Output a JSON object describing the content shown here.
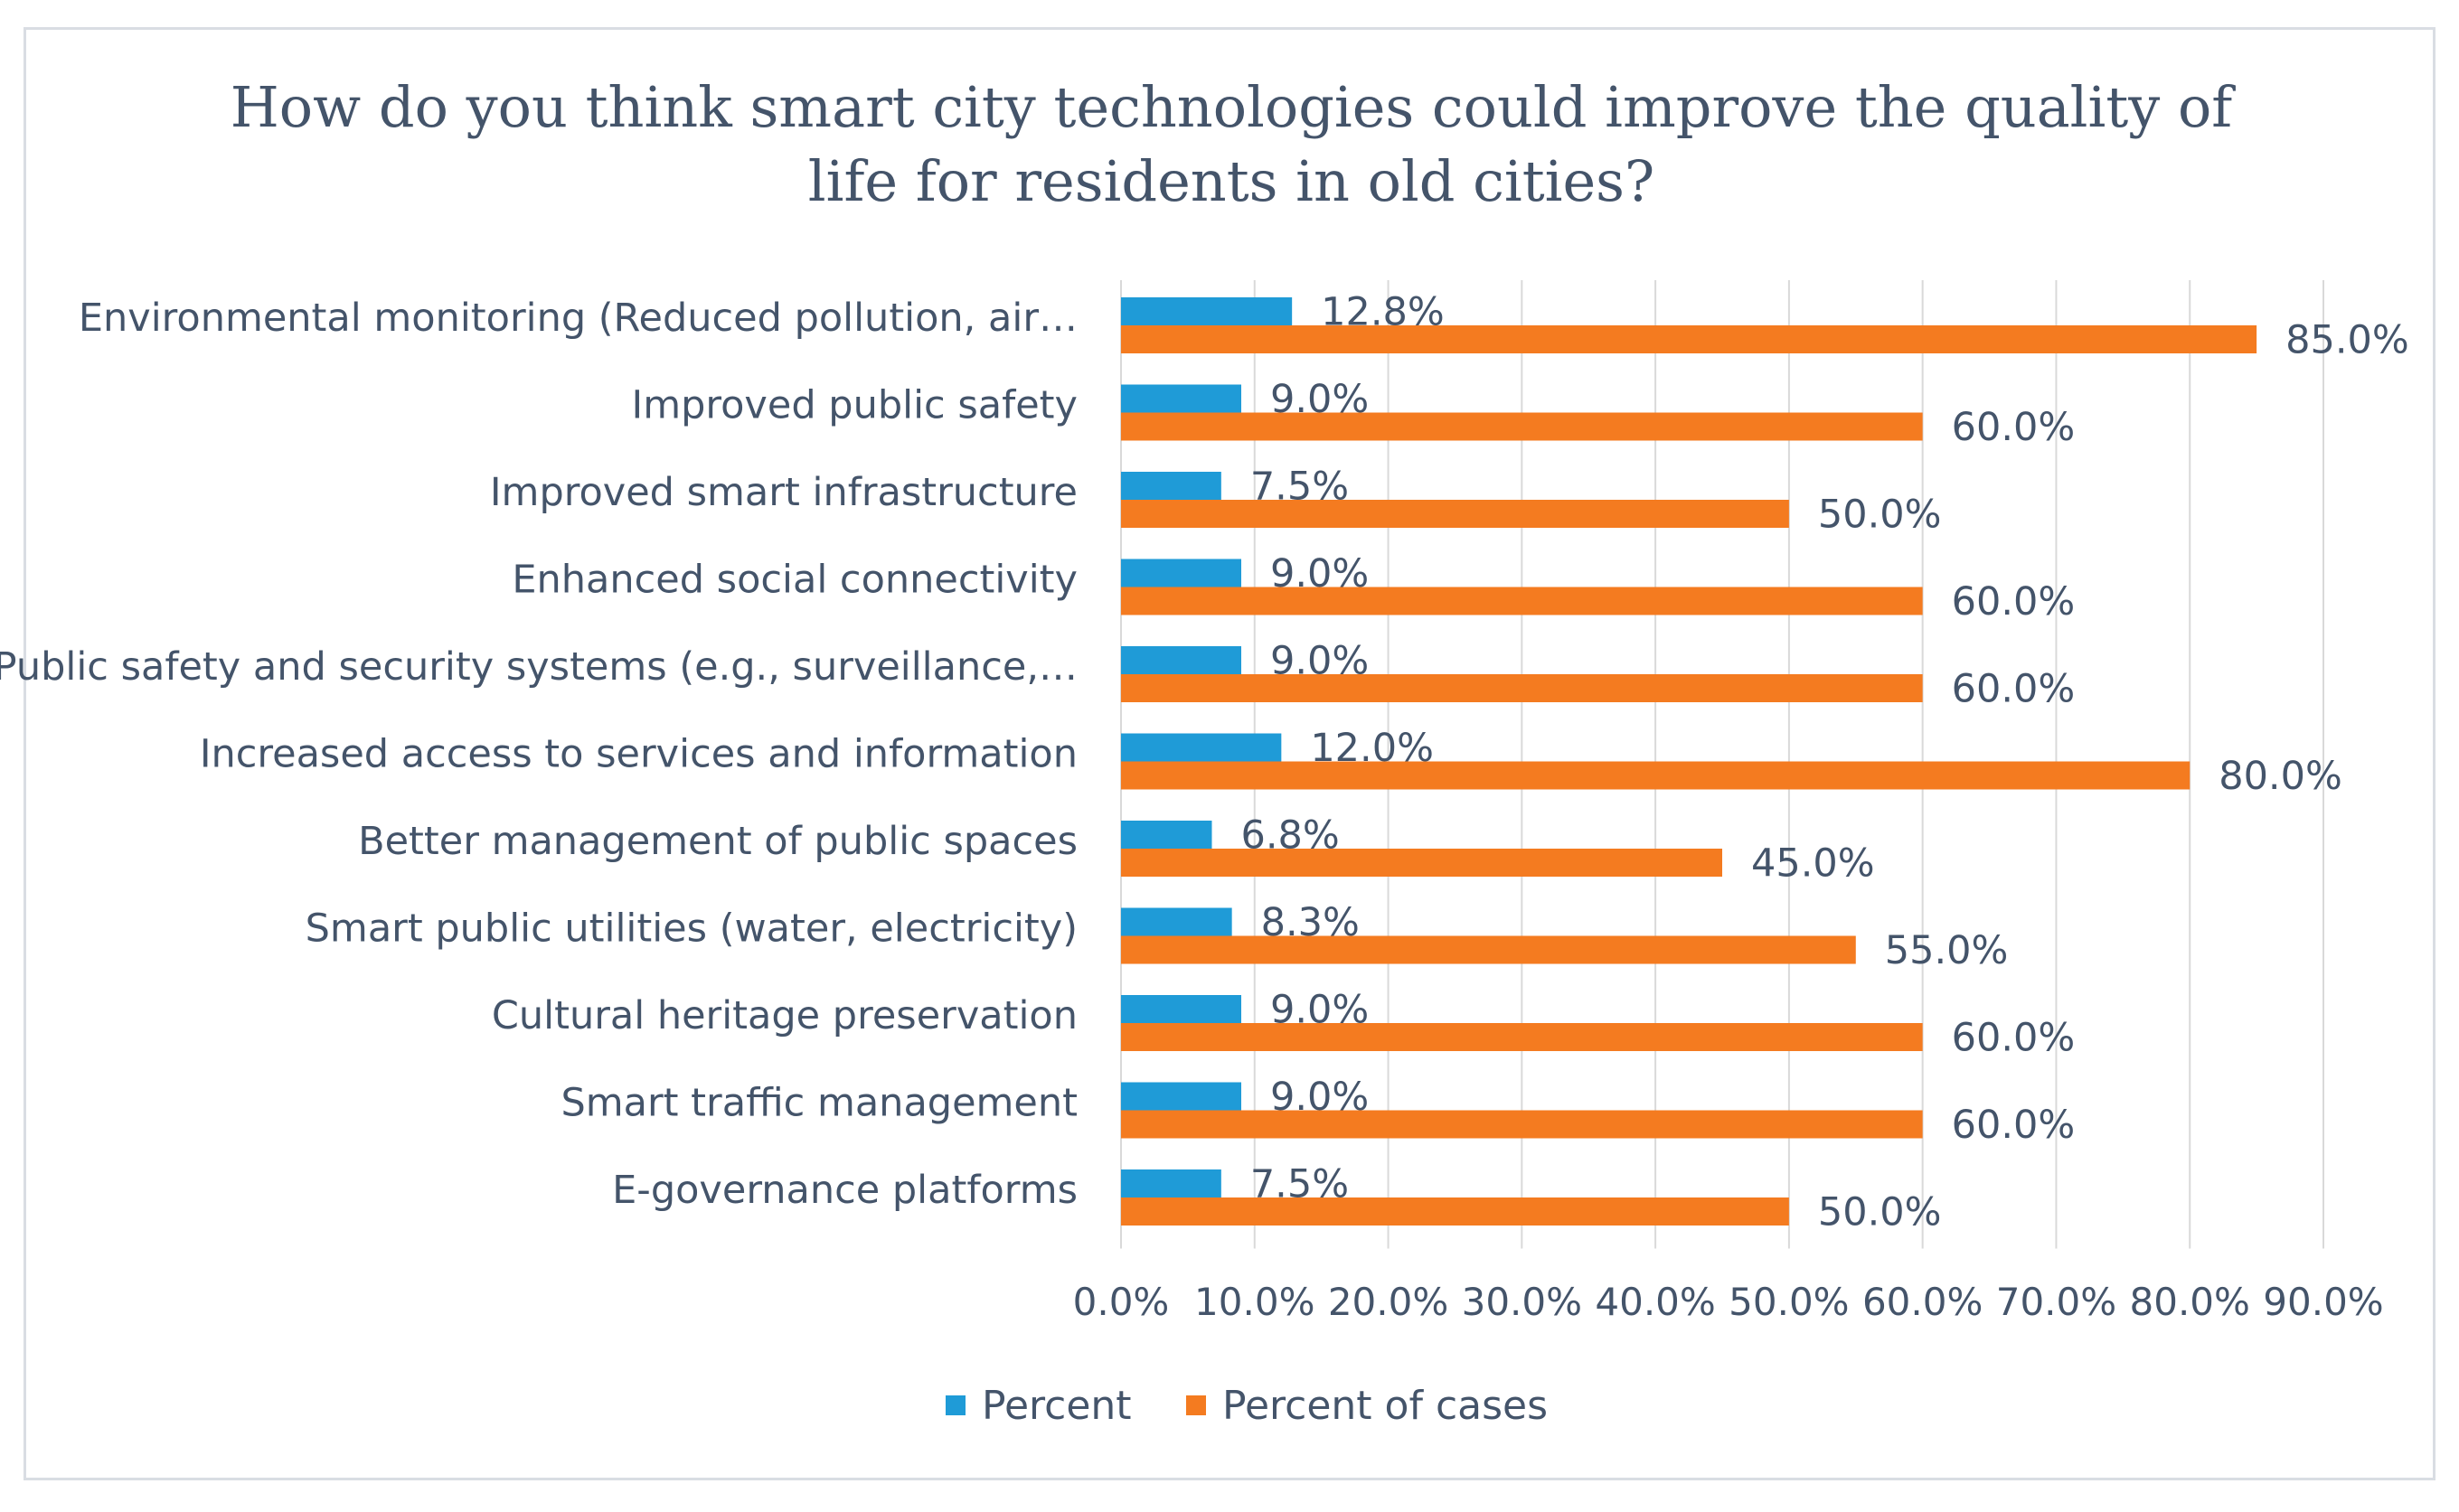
{
  "chart_data": {
    "type": "bar",
    "orientation": "horizontal",
    "title": "How do you think smart city technologies could improve the quality of life for residents in old cities?",
    "title_lines": [
      "How do you think smart city technologies could improve the quality of",
      "life for residents in old cities?"
    ],
    "categories": [
      "Environmental monitoring (Reduced pollution, air…",
      "Improved public safety",
      "Improved smart infrastructure",
      "Enhanced social connectivity",
      "Public safety and security systems (e.g., surveillance,…",
      "Increased access to services and information",
      "Better management of public spaces",
      "Smart public utilities (water, electricity)",
      "Cultural heritage preservation",
      "Smart traffic management",
      "E-governance platforms"
    ],
    "series": [
      {
        "name": "Percent",
        "color": "#1f9bd7",
        "values": [
          12.8,
          9.0,
          7.5,
          9.0,
          9.0,
          12.0,
          6.8,
          8.3,
          9.0,
          9.0,
          7.5
        ],
        "labels": [
          "12.8%",
          "9.0%",
          "7.5%",
          "9.0%",
          "9.0%",
          "12.0%",
          "6.8%",
          "8.3%",
          "9.0%",
          "9.0%",
          "7.5%"
        ]
      },
      {
        "name": "Percent of cases",
        "color": "#f47b20",
        "values": [
          85.0,
          60.0,
          50.0,
          60.0,
          60.0,
          80.0,
          45.0,
          55.0,
          60.0,
          60.0,
          50.0
        ],
        "labels": [
          "85.0%",
          "60.0%",
          "50.0%",
          "60.0%",
          "60.0%",
          "80.0%",
          "45.0%",
          "55.0%",
          "60.0%",
          "60.0%",
          "50.0%"
        ]
      }
    ],
    "xlim": [
      0,
      90
    ],
    "xticks": [
      0,
      10,
      20,
      30,
      40,
      50,
      60,
      70,
      80,
      90
    ],
    "xtick_labels": [
      "0.0%",
      "10.0%",
      "20.0%",
      "30.0%",
      "40.0%",
      "50.0%",
      "60.0%",
      "70.0%",
      "80.0%",
      "90.0%"
    ],
    "grid": true,
    "legend": "bottom",
    "colors": {
      "gridline": "#d9d9d9",
      "text": "#44546a",
      "border": "#d9dde3"
    }
  }
}
